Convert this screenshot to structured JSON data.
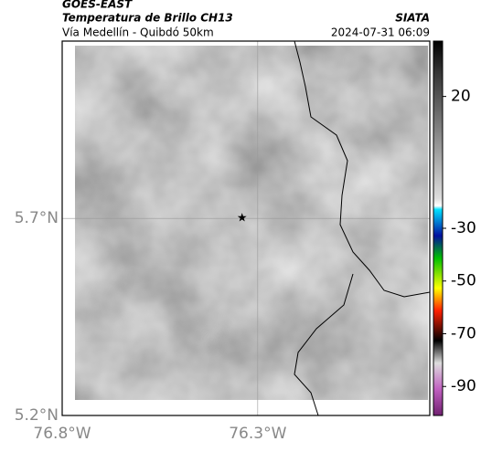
{
  "header": {
    "title": "GOES-EAST",
    "subtitle": "Temperatura de Brillo CH13",
    "location": "Vía Medellín - Quibdó 50km",
    "source": "SIATA",
    "timestamp": "2024-07-31 06:09"
  },
  "map": {
    "xlim": [
      -76.8,
      -75.86
    ],
    "ylim": [
      5.2,
      6.15
    ],
    "xticks": [
      {
        "value": -76.8,
        "label": "76.8°W"
      },
      {
        "value": -76.3,
        "label": "76.3°W"
      }
    ],
    "yticks": [
      {
        "value": 5.2,
        "label": "5.2°N"
      },
      {
        "value": 5.7,
        "label": "5.7°N"
      }
    ],
    "grid": true,
    "marker": {
      "lon": -76.34,
      "lat": 5.7
    }
  },
  "colorbar": {
    "lim": [
      -101,
      41
    ],
    "ticks": [
      20,
      -30,
      -50,
      -70,
      -90
    ]
  }
}
